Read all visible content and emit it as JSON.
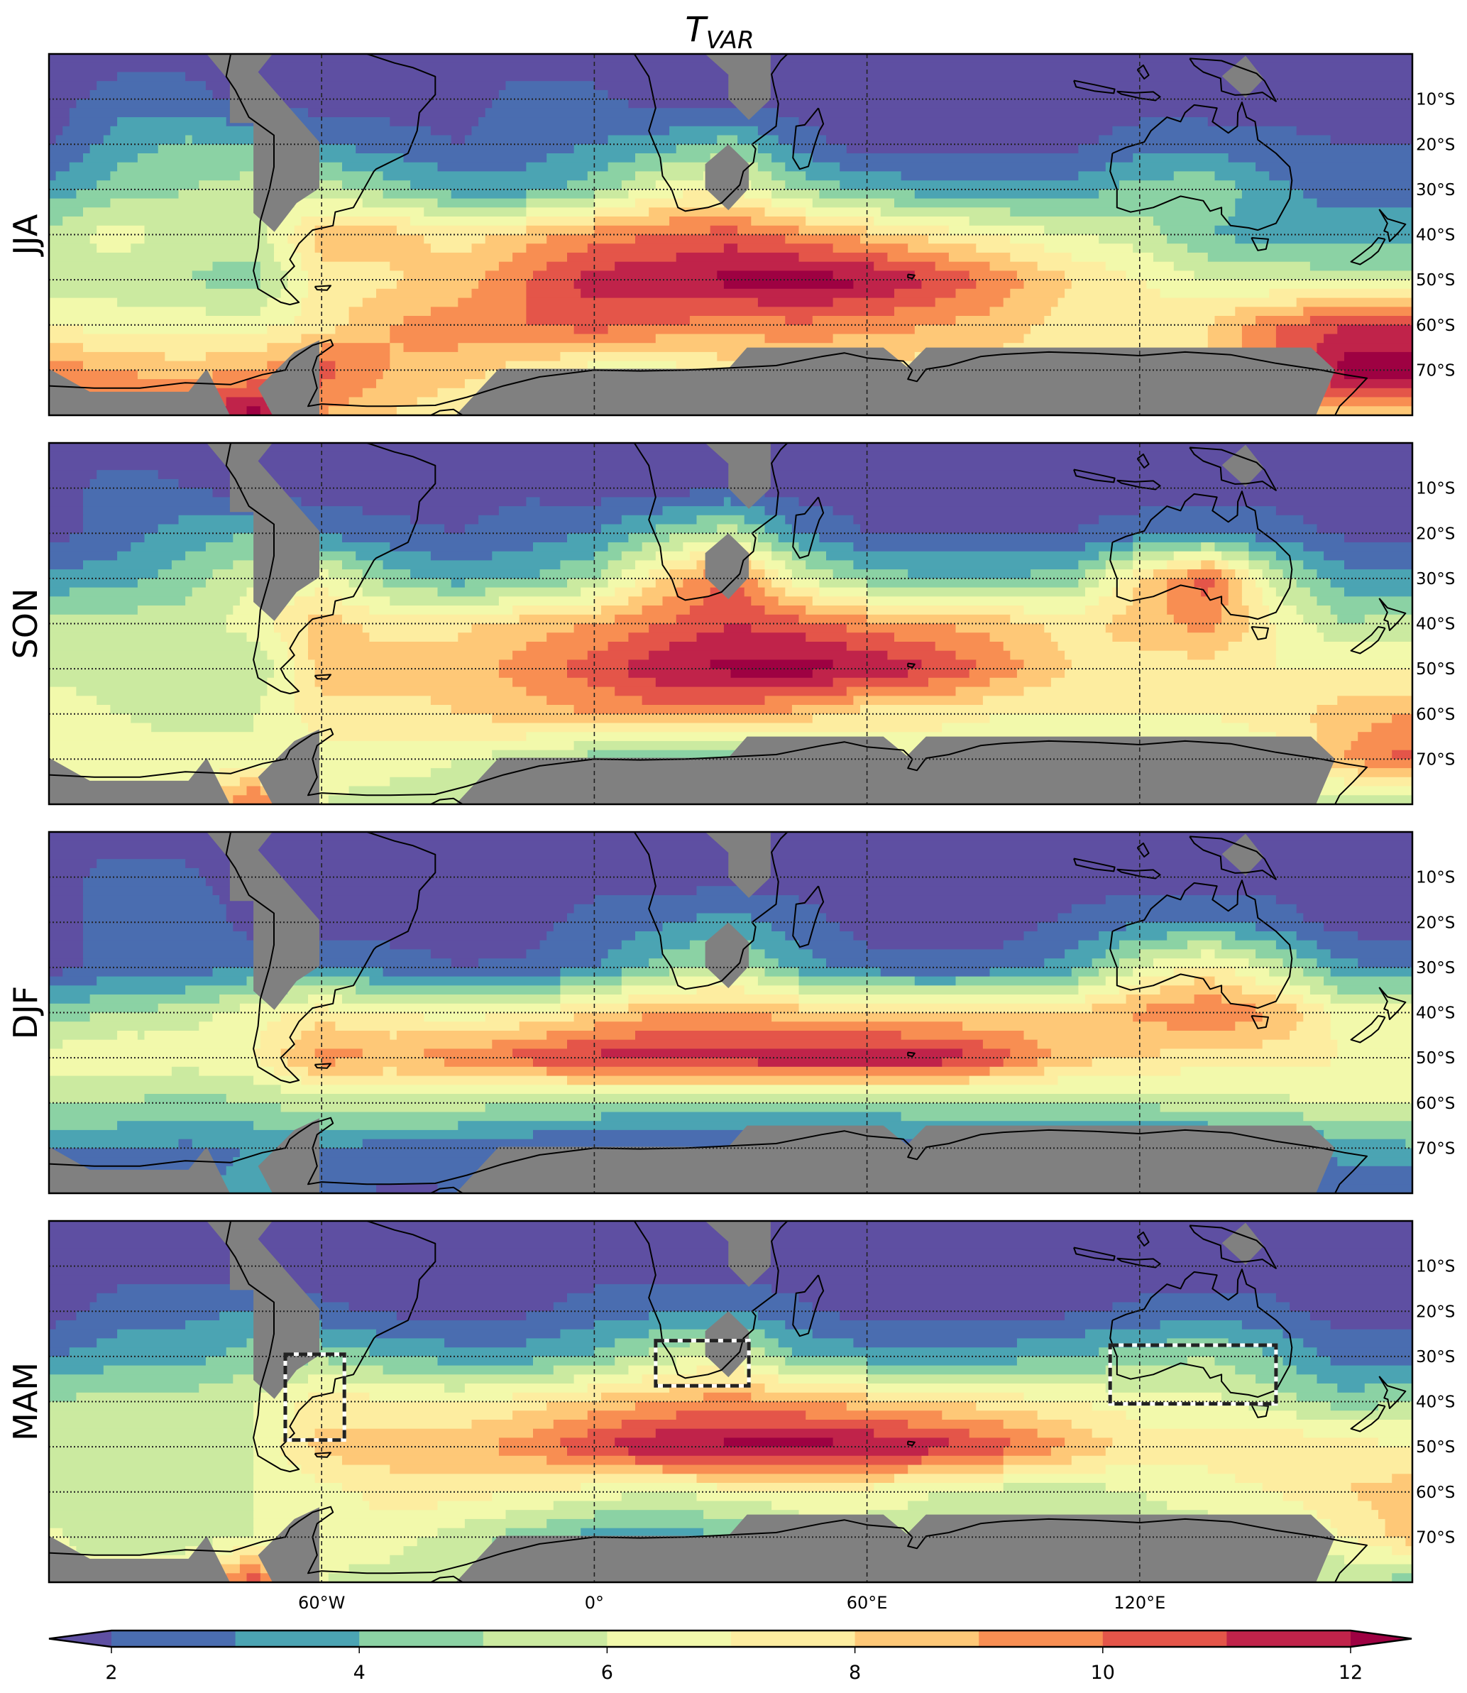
{
  "chart_data": {
    "type": "heatmap",
    "title": {
      "main": "T",
      "sub": "VAR"
    },
    "lon_range": [
      -120,
      180
    ],
    "lat_range": [
      0,
      -80
    ],
    "grid_lon": [
      -120,
      -105,
      -90,
      -75,
      -60,
      -45,
      -30,
      -15,
      0,
      15,
      30,
      45,
      60,
      75,
      90,
      105,
      120,
      135,
      150,
      165,
      180
    ],
    "grid_lat": [
      0,
      -10,
      -20,
      -30,
      -40,
      -50,
      -60,
      -70,
      -80
    ],
    "lat_ticks": [
      {
        "value": -10,
        "label": "10°S"
      },
      {
        "value": -20,
        "label": "20°S"
      },
      {
        "value": -30,
        "label": "30°S"
      },
      {
        "value": -40,
        "label": "40°S"
      },
      {
        "value": -50,
        "label": "50°S"
      },
      {
        "value": -60,
        "label": "60°S"
      },
      {
        "value": -70,
        "label": "70°S"
      }
    ],
    "lon_ticks": [
      {
        "value": -60,
        "label": "60°W"
      },
      {
        "value": 0,
        "label": "0°"
      },
      {
        "value": 60,
        "label": "60°E"
      },
      {
        "value": 120,
        "label": "120°E"
      }
    ],
    "colorbar": {
      "levels": [
        2,
        3,
        4,
        5,
        6,
        7,
        8,
        9,
        10,
        11,
        12
      ],
      "extend": "both",
      "colors": [
        "#5e4fa2",
        "#4a6db0",
        "#4ba4b3",
        "#8bd2a4",
        "#cbeaa0",
        "#f2f9ab",
        "#fdeda0",
        "#fec877",
        "#f88e52",
        "#e45549",
        "#c0234a",
        "#9e0142"
      ],
      "ticks": [
        {
          "value": 2,
          "label": "2"
        },
        {
          "value": 4,
          "label": "4"
        },
        {
          "value": 6,
          "label": "6"
        },
        {
          "value": 8,
          "label": "8"
        },
        {
          "value": 10,
          "label": "10"
        },
        {
          "value": 12,
          "label": "12"
        }
      ]
    },
    "mask_color": "#808080",
    "panels": [
      {
        "season": "JJA",
        "boxes": [],
        "values": [
          [
            1.5,
            1.5,
            1.5,
            1.5,
            1.5,
            1.5,
            1.5,
            1.5,
            1.5,
            1.5,
            1.5,
            1.5,
            1.5,
            1.5,
            1.5,
            1.5,
            1.5,
            1.5,
            1.5,
            1.5,
            1.5
          ],
          [
            1.5,
            2.5,
            2.5,
            1.5,
            1.5,
            1.5,
            1.5,
            2.5,
            2.2,
            1.5,
            1.5,
            1.5,
            1.5,
            1.5,
            1.5,
            1.5,
            1.5,
            1.5,
            1.5,
            1.5,
            1.5
          ],
          [
            1.8,
            3.5,
            4.2,
            4.0,
            3.0,
            2.5,
            2.0,
            2.5,
            3.0,
            3.5,
            4.5,
            2.5,
            1.5,
            1.5,
            1.5,
            1.8,
            2.5,
            2.5,
            2.3,
            2.0,
            2.0
          ],
          [
            3.3,
            4.5,
            5.0,
            5.5,
            5.5,
            4.5,
            3.5,
            3.5,
            4.5,
            6.5,
            7.0,
            4.8,
            3.8,
            3.5,
            3.3,
            3.3,
            4.5,
            4.8,
            3.2,
            2.5,
            2.5
          ],
          [
            5.5,
            6.5,
            5.5,
            5.5,
            8.5,
            8.5,
            7.5,
            8.5,
            9.5,
            10.0,
            10.5,
            9.5,
            8.5,
            7.5,
            6.8,
            6.0,
            5.5,
            4.0,
            3.5,
            3.5,
            3.8
          ],
          [
            5.3,
            5.5,
            5.0,
            4.5,
            7.5,
            7.8,
            8.5,
            10.0,
            11.5,
            11.8,
            12.3,
            12.5,
            12.2,
            11.0,
            9.5,
            8.0,
            7.0,
            6.0,
            5.8,
            5.5,
            5.5
          ],
          [
            7.0,
            6.5,
            6.5,
            6.5,
            7.5,
            9.0,
            9.5,
            10.0,
            10.5,
            10.0,
            9.5,
            9.8,
            9.5,
            9.0,
            8.5,
            7.5,
            7.5,
            8.0,
            10.0,
            11.0,
            11.5
          ],
          [
            9.5,
            9.0,
            8.5,
            9.0,
            10.5,
            9.0,
            8.5,
            7.5,
            6.5,
            6.5,
            7.5,
            7.5,
            7.5,
            7.5,
            7.5,
            7.5,
            7.5,
            7.8,
            10.0,
            12.5,
            12.5
          ],
          [
            10.0,
            10.0,
            11.0,
            12.5,
            9.0,
            8.0,
            7.0,
            7.0,
            7.0,
            7.0,
            7.0,
            7.0,
            7.0,
            7.0,
            7.0,
            7.0,
            7.0,
            7.0,
            8.0,
            8.5,
            7.5
          ]
        ]
      },
      {
        "season": "SON",
        "boxes": [],
        "values": [
          [
            1.5,
            1.5,
            1.5,
            1.5,
            1.5,
            1.5,
            1.5,
            1.5,
            1.5,
            1.5,
            1.5,
            1.5,
            1.5,
            1.5,
            1.5,
            1.5,
            1.5,
            1.5,
            1.5,
            1.5,
            1.5
          ],
          [
            1.5,
            2.5,
            2.0,
            1.5,
            1.5,
            1.5,
            1.5,
            1.8,
            1.5,
            1.5,
            2.0,
            1.5,
            1.5,
            1.5,
            1.5,
            1.5,
            1.5,
            1.5,
            1.5,
            1.5,
            1.5
          ],
          [
            1.5,
            2.5,
            3.5,
            4.0,
            2.8,
            2.3,
            2.0,
            2.5,
            3.0,
            4.5,
            5.5,
            3.0,
            2.0,
            2.0,
            2.0,
            2.0,
            2.5,
            2.8,
            2.5,
            1.8,
            1.8
          ],
          [
            3.3,
            3.5,
            4.5,
            6.0,
            6.5,
            4.5,
            3.5,
            4.0,
            5.0,
            8.0,
            10.5,
            6.0,
            4.5,
            4.0,
            4.0,
            4.5,
            8.0,
            10.5,
            5.5,
            3.5,
            3.3
          ],
          [
            5.5,
            5.5,
            5.5,
            6.5,
            8.5,
            7.5,
            7.8,
            8.5,
            9.0,
            10.0,
            11.0,
            10.5,
            9.5,
            9.0,
            8.5,
            7.5,
            8.5,
            9.5,
            7.0,
            5.0,
            5.5
          ],
          [
            5.5,
            5.5,
            5.0,
            5.0,
            8.5,
            8.5,
            8.5,
            9.5,
            10.5,
            11.8,
            12.3,
            12.5,
            12.0,
            11.0,
            9.5,
            8.0,
            7.5,
            7.5,
            7.0,
            7.0,
            7.0
          ],
          [
            6.8,
            6.0,
            5.5,
            6.0,
            7.5,
            7.5,
            8.0,
            8.5,
            9.0,
            9.5,
            9.5,
            8.5,
            7.5,
            7.5,
            7.0,
            7.0,
            7.0,
            7.0,
            7.5,
            8.5,
            9.0
          ],
          [
            7.0,
            6.8,
            6.5,
            6.0,
            6.5,
            6.5,
            6.0,
            5.5,
            4.5,
            3.5,
            3.5,
            5.5,
            6.0,
            6.0,
            6.0,
            6.0,
            6.0,
            6.0,
            6.5,
            9.0,
            10.5
          ],
          [
            6.0,
            6.0,
            7.0,
            10.5,
            6.0,
            5.5,
            5.5,
            5.5,
            5.5,
            5.5,
            5.5,
            5.5,
            5.5,
            5.5,
            5.5,
            5.5,
            5.5,
            5.5,
            5.5,
            5.0,
            4.5
          ]
        ]
      },
      {
        "season": "DJF",
        "boxes": [],
        "values": [
          [
            1.5,
            1.5,
            1.5,
            1.5,
            1.5,
            1.5,
            1.5,
            1.5,
            1.5,
            1.5,
            1.5,
            1.5,
            1.5,
            1.5,
            1.5,
            1.5,
            1.5,
            1.5,
            1.5,
            1.5,
            1.5
          ],
          [
            1.5,
            2.5,
            2.2,
            1.5,
            1.5,
            1.5,
            1.5,
            1.5,
            1.5,
            1.5,
            1.5,
            1.5,
            1.5,
            1.5,
            1.5,
            1.5,
            1.5,
            1.5,
            1.5,
            1.5,
            1.5
          ],
          [
            1.5,
            2.5,
            2.8,
            1.5,
            1.5,
            1.5,
            1.5,
            1.5,
            2.5,
            2.8,
            3.5,
            2.5,
            1.5,
            1.5,
            1.5,
            2.2,
            2.8,
            3.0,
            2.5,
            1.5,
            1.5
          ],
          [
            1.5,
            2.5,
            2.5,
            3.0,
            3.0,
            2.5,
            2.0,
            2.2,
            2.8,
            4.5,
            5.5,
            3.5,
            2.5,
            2.2,
            2.5,
            3.5,
            6.0,
            7.5,
            5.5,
            3.2,
            3.0
          ],
          [
            4.5,
            5.0,
            5.5,
            6.5,
            7.5,
            7.0,
            6.5,
            7.0,
            8.0,
            9.0,
            9.0,
            8.5,
            8.0,
            8.0,
            8.0,
            8.0,
            9.2,
            10.0,
            9.0,
            6.5,
            6.5
          ],
          [
            6.5,
            7.0,
            6.5,
            7.0,
            9.5,
            9.0,
            9.5,
            10.5,
            11.3,
            11.5,
            11.5,
            12.0,
            12.2,
            11.8,
            10.5,
            8.5,
            8.0,
            7.5,
            7.5,
            7.0,
            7.0
          ],
          [
            5.0,
            5.0,
            4.5,
            5.0,
            5.5,
            5.5,
            5.5,
            5.0,
            5.0,
            4.5,
            4.5,
            4.5,
            4.5,
            4.8,
            5.0,
            5.0,
            5.2,
            5.5,
            5.8,
            6.0,
            6.2
          ],
          [
            3.0,
            3.0,
            2.8,
            3.0,
            3.0,
            2.5,
            2.5,
            2.2,
            1.8,
            1.8,
            1.8,
            2.0,
            2.5,
            2.5,
            2.5,
            2.5,
            2.5,
            2.5,
            2.5,
            3.5,
            3.8
          ],
          [
            2.5,
            2.5,
            2.5,
            3.5,
            2.5,
            1.8,
            2.0,
            2.0,
            2.0,
            2.0,
            2.0,
            2.0,
            2.0,
            2.0,
            2.0,
            2.0,
            2.0,
            2.0,
            2.0,
            2.0,
            1.8
          ]
        ]
      },
      {
        "season": "MAM",
        "boxes": [
          {
            "lon": [
              -68,
              -55
            ],
            "lat": [
              -29.5,
              -48.5
            ]
          },
          {
            "lon": [
              13.5,
              34
            ],
            "lat": [
              -26.5,
              -36.5
            ]
          },
          {
            "lon": [
              113.5,
              150
            ],
            "lat": [
              -27.5,
              -40.5
            ]
          }
        ],
        "values": [
          [
            1.5,
            1.5,
            1.5,
            1.5,
            1.5,
            1.5,
            1.5,
            1.5,
            1.5,
            1.5,
            1.5,
            1.5,
            1.5,
            1.5,
            1.5,
            1.5,
            1.5,
            1.5,
            1.5,
            1.5,
            1.5
          ],
          [
            1.5,
            1.5,
            1.5,
            1.5,
            1.5,
            1.5,
            1.5,
            1.5,
            1.5,
            1.5,
            1.5,
            1.5,
            1.5,
            1.5,
            1.5,
            1.5,
            1.5,
            1.5,
            1.5,
            1.5,
            1.5
          ],
          [
            1.5,
            2.5,
            2.8,
            3.0,
            2.2,
            1.8,
            1.5,
            1.8,
            2.5,
            2.8,
            3.0,
            2.2,
            1.5,
            1.5,
            1.5,
            1.8,
            2.2,
            2.5,
            2.2,
            1.5,
            1.5
          ],
          [
            3.0,
            3.5,
            3.5,
            4.5,
            4.8,
            4.0,
            3.5,
            3.5,
            4.2,
            5.5,
            6.5,
            4.0,
            3.5,
            3.5,
            3.5,
            4.0,
            4.5,
            5.0,
            4.0,
            2.5,
            2.5
          ],
          [
            5.0,
            5.5,
            5.5,
            6.0,
            7.5,
            7.2,
            7.0,
            7.5,
            8.3,
            9.0,
            9.5,
            9.0,
            8.5,
            8.0,
            7.5,
            7.0,
            6.5,
            6.3,
            5.5,
            4.5,
            5.0
          ],
          [
            6.0,
            6.0,
            6.0,
            6.0,
            8.5,
            8.5,
            8.7,
            9.5,
            11.0,
            12.0,
            12.3,
            12.5,
            12.2,
            11.5,
            10.5,
            9.0,
            7.5,
            7.5,
            8.0,
            7.5,
            7.0
          ],
          [
            5.5,
            5.0,
            5.2,
            6.0,
            6.5,
            7.5,
            7.5,
            7.0,
            6.5,
            6.0,
            6.5,
            6.5,
            6.5,
            6.0,
            5.5,
            5.5,
            6.0,
            6.5,
            7.0,
            8.0,
            8.5
          ],
          [
            6.2,
            5.5,
            5.5,
            6.0,
            6.5,
            6.5,
            5.5,
            4.5,
            3.5,
            3.3,
            4.0,
            5.5,
            5.5,
            5.5,
            5.5,
            5.5,
            5.5,
            5.5,
            5.5,
            7.0,
            8.5
          ],
          [
            6.0,
            6.5,
            7.0,
            11.0,
            6.0,
            5.5,
            5.0,
            5.0,
            5.0,
            5.0,
            5.0,
            5.0,
            5.0,
            5.0,
            5.0,
            5.0,
            5.0,
            5.0,
            5.0,
            5.0,
            4.5
          ]
        ]
      }
    ]
  }
}
